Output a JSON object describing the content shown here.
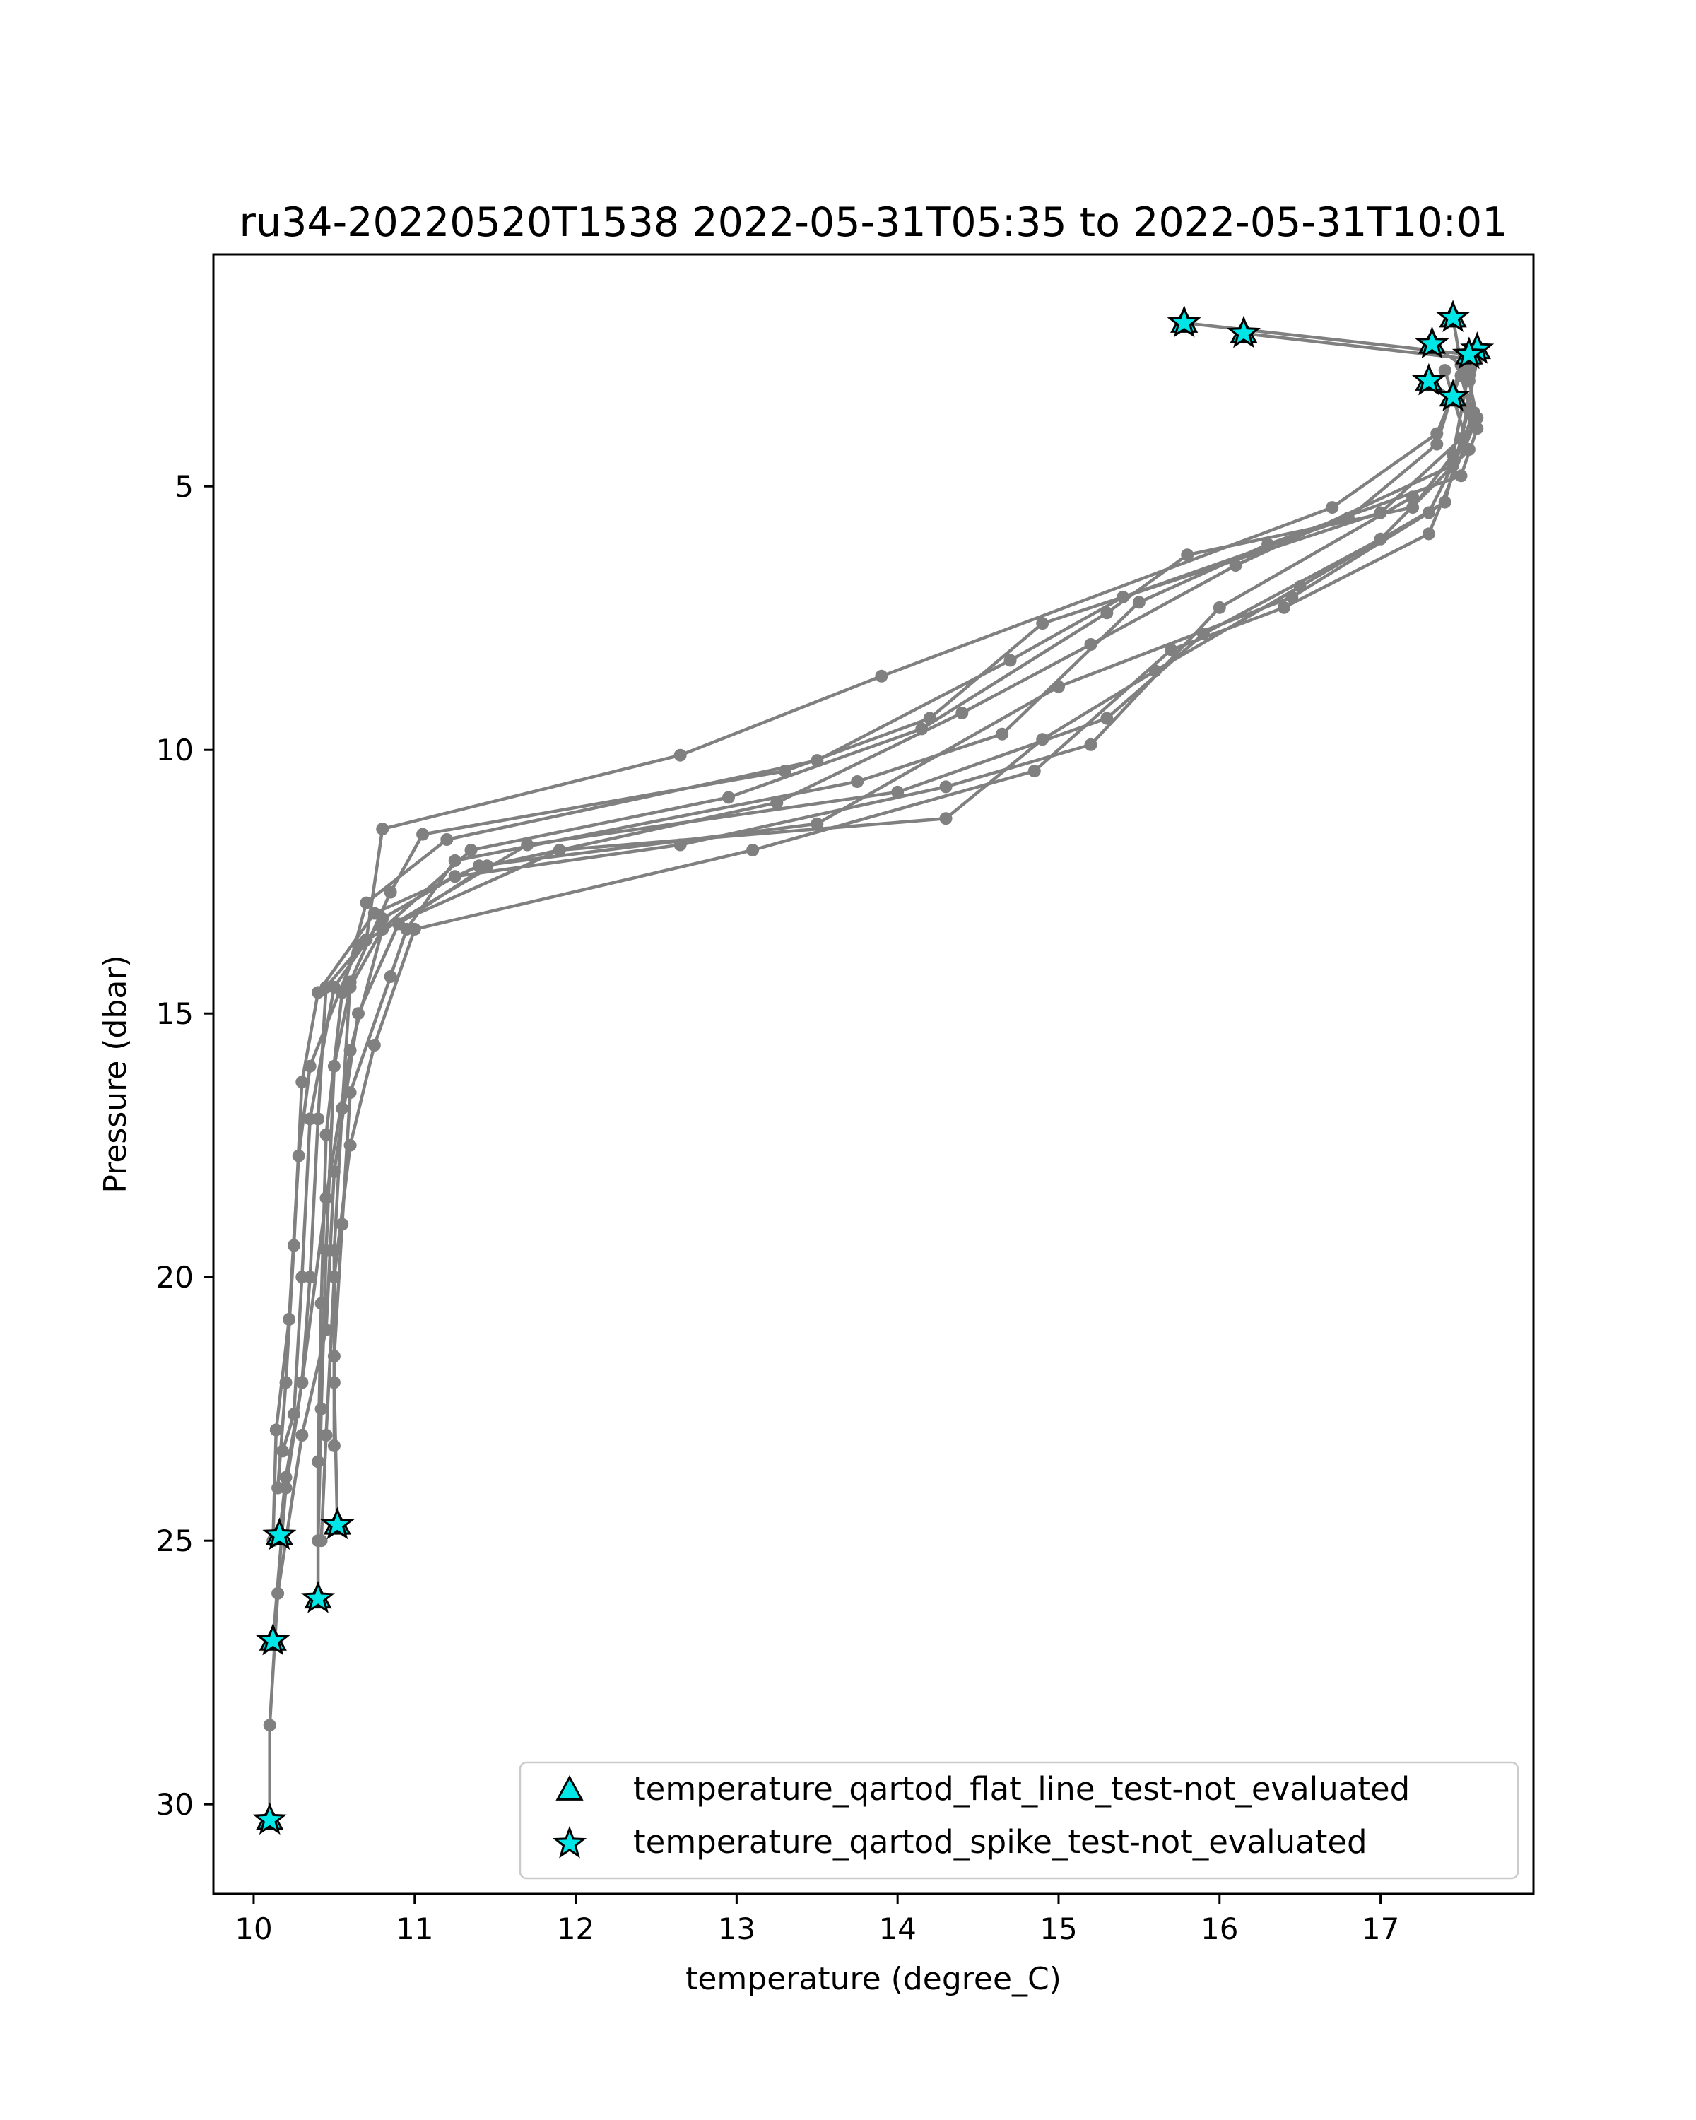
{
  "chart_data": {
    "type": "line",
    "title": "ru34-20220520T1538 2022-05-31T05:35 to 2022-05-31T10:01",
    "xlabel": "temperature (degree_C)",
    "ylabel": "Pressure (dbar)",
    "xlim": [
      9.75,
      17.95
    ],
    "ylim": [
      31.7,
      0.6
    ],
    "y_inverted": true,
    "xticks": [
      10,
      11,
      12,
      13,
      14,
      15,
      16,
      17
    ],
    "yticks": [
      5,
      10,
      15,
      20,
      25,
      30
    ],
    "grid": false,
    "legend_position": "lower-right",
    "colors": {
      "profile_line": "#808080",
      "flag_fill": "#00e5e5",
      "flag_edge": "#000000"
    },
    "legend": [
      {
        "label": "temperature_qartod_flat_line_test-not_evaluated",
        "marker": "triangle"
      },
      {
        "label": "temperature_qartod_spike_test-not_evaluated",
        "marker": "star"
      }
    ],
    "series": [
      {
        "values": [
          [
            15.78,
            1.9
          ],
          [
            17.55,
            2.5
          ],
          [
            17.35,
            4.0
          ],
          [
            16.7,
            5.4
          ],
          [
            13.9,
            8.6
          ],
          [
            12.65,
            10.1
          ],
          [
            10.8,
            11.5
          ],
          [
            10.7,
            13.6
          ],
          [
            10.45,
            14.5
          ],
          [
            10.4,
            17.0
          ],
          [
            10.35,
            20.0
          ],
          [
            10.3,
            22.0
          ],
          [
            10.2,
            23.8
          ],
          [
            10.16,
            24.9
          ]
        ]
      },
      {
        "values": [
          [
            16.15,
            2.1
          ],
          [
            17.6,
            2.6
          ],
          [
            17.5,
            4.1
          ],
          [
            17.0,
            5.5
          ],
          [
            14.9,
            7.6
          ],
          [
            14.2,
            9.4
          ],
          [
            13.3,
            10.4
          ],
          [
            11.05,
            11.6
          ],
          [
            10.85,
            12.7
          ],
          [
            10.6,
            14.4
          ],
          [
            10.55,
            16.8
          ],
          [
            10.5,
            19.5
          ],
          [
            10.5,
            22.0
          ],
          [
            10.52,
            24.7
          ]
        ]
      },
      {
        "values": [
          [
            17.45,
            1.8
          ],
          [
            17.5,
            2.7
          ],
          [
            17.35,
            4.2
          ],
          [
            16.8,
            5.6
          ],
          [
            15.4,
            7.1
          ],
          [
            14.7,
            8.3
          ],
          [
            13.5,
            10.2
          ],
          [
            11.2,
            11.7
          ],
          [
            10.7,
            12.9
          ],
          [
            10.55,
            14.6
          ],
          [
            10.45,
            17.3
          ],
          [
            10.42,
            20.5
          ],
          [
            10.4,
            23.5
          ],
          [
            10.4,
            26.1
          ]
        ]
      },
      {
        "values": [
          [
            17.32,
            2.3
          ],
          [
            17.55,
            2.8
          ],
          [
            17.45,
            4.4
          ],
          [
            17.2,
            5.4
          ],
          [
            15.8,
            6.3
          ],
          [
            15.3,
            7.4
          ],
          [
            14.15,
            9.6
          ],
          [
            12.95,
            10.9
          ],
          [
            11.35,
            11.9
          ],
          [
            10.8,
            13.4
          ],
          [
            10.6,
            15.7
          ],
          [
            10.45,
            18.5
          ],
          [
            10.3,
            22.0
          ],
          [
            10.2,
            24.0
          ],
          [
            10.12,
            26.9
          ]
        ]
      },
      {
        "values": [
          [
            17.3,
            3.0
          ],
          [
            17.58,
            3.6
          ],
          [
            17.45,
            4.6
          ],
          [
            16.1,
            6.5
          ],
          [
            15.2,
            8.0
          ],
          [
            14.4,
            9.3
          ],
          [
            13.25,
            11.0
          ],
          [
            11.45,
            12.2
          ],
          [
            10.9,
            13.3
          ],
          [
            10.65,
            15.0
          ],
          [
            10.5,
            18.0
          ],
          [
            10.45,
            21.0
          ],
          [
            10.3,
            23.0
          ],
          [
            10.15,
            26.0
          ],
          [
            10.1,
            28.5
          ],
          [
            10.1,
            30.3
          ]
        ]
      },
      {
        "values": [
          [
            17.45,
            3.3
          ],
          [
            17.6,
            3.9
          ],
          [
            17.5,
            4.8
          ],
          [
            16.3,
            6.1
          ],
          [
            15.5,
            7.2
          ],
          [
            14.65,
            9.7
          ],
          [
            13.75,
            10.6
          ],
          [
            11.25,
            12.1
          ],
          [
            10.95,
            13.4
          ],
          [
            10.85,
            14.3
          ],
          [
            10.6,
            16.5
          ],
          [
            10.55,
            19.0
          ],
          [
            10.5,
            21.5
          ],
          [
            10.5,
            23.2
          ]
        ]
      },
      {
        "values": [
          [
            17.6,
            2.4
          ],
          [
            17.55,
            3.5
          ],
          [
            17.4,
            5.3
          ],
          [
            16.5,
            6.9
          ],
          [
            15.6,
            8.5
          ],
          [
            14.9,
            9.8
          ],
          [
            14.3,
            11.3
          ],
          [
            11.9,
            11.9
          ],
          [
            10.8,
            13.4
          ],
          [
            10.6,
            14.5
          ],
          [
            10.5,
            16.0
          ],
          [
            10.45,
            19.5
          ],
          [
            10.42,
            22.5
          ],
          [
            10.4,
            25.0
          ]
        ]
      },
      {
        "values": [
          [
            17.55,
            3.0
          ],
          [
            17.6,
            3.7
          ],
          [
            17.3,
            5.9
          ],
          [
            16.4,
            7.3
          ],
          [
            15.7,
            8.1
          ],
          [
            14.85,
            10.4
          ],
          [
            13.1,
            11.9
          ],
          [
            11.0,
            13.4
          ],
          [
            10.75,
            15.6
          ],
          [
            10.6,
            17.5
          ],
          [
            10.5,
            20.0
          ],
          [
            10.45,
            23.0
          ],
          [
            10.42,
            25.0
          ]
        ]
      },
      {
        "values": [
          [
            17.5,
            2.9
          ],
          [
            17.58,
            3.8
          ],
          [
            17.3,
            5.5
          ],
          [
            16.45,
            7.1
          ],
          [
            15.0,
            8.8
          ],
          [
            13.5,
            11.4
          ],
          [
            11.4,
            12.2
          ],
          [
            10.75,
            13.1
          ],
          [
            10.4,
            14.6
          ],
          [
            10.3,
            16.3
          ],
          [
            10.25,
            19.4
          ],
          [
            10.2,
            22.0
          ],
          [
            10.15,
            24.0
          ]
        ]
      },
      {
        "values": [
          [
            17.4,
            2.8
          ],
          [
            17.55,
            4.3
          ],
          [
            17.0,
            6.0
          ],
          [
            15.9,
            7.8
          ],
          [
            15.3,
            9.4
          ],
          [
            14.0,
            10.8
          ],
          [
            11.7,
            11.8
          ],
          [
            10.65,
            13.7
          ],
          [
            10.35,
            16.0
          ],
          [
            10.28,
            17.7
          ],
          [
            10.22,
            20.8
          ],
          [
            10.14,
            22.9
          ],
          [
            10.12,
            25.0
          ]
        ]
      },
      {
        "values": [
          [
            17.2,
            5.2
          ],
          [
            16.0,
            7.3
          ],
          [
            15.2,
            9.9
          ],
          [
            14.3,
            10.7
          ],
          [
            12.65,
            11.8
          ],
          [
            11.25,
            12.4
          ],
          [
            10.8,
            13.2
          ],
          [
            10.5,
            14.5
          ],
          [
            10.35,
            17.0
          ],
          [
            10.3,
            20.0
          ],
          [
            10.25,
            22.6
          ],
          [
            10.18,
            23.3
          ]
        ]
      }
    ],
    "flagged_points": [
      {
        "marker": "triangle",
        "values": [
          [
            15.78,
            1.9
          ],
          [
            16.15,
            2.1
          ],
          [
            17.45,
            1.8
          ],
          [
            17.32,
            2.3
          ],
          [
            17.6,
            2.4
          ],
          [
            17.55,
            2.5
          ],
          [
            17.3,
            3.0
          ],
          [
            17.45,
            3.3
          ],
          [
            10.16,
            24.9
          ],
          [
            10.52,
            24.7
          ],
          [
            10.4,
            26.1
          ],
          [
            10.12,
            26.9
          ],
          [
            10.1,
            30.3
          ]
        ]
      },
      {
        "marker": "star",
        "values": [
          [
            15.78,
            1.9
          ],
          [
            16.15,
            2.1
          ],
          [
            17.45,
            1.8
          ],
          [
            17.32,
            2.3
          ],
          [
            17.6,
            2.4
          ],
          [
            17.55,
            2.5
          ],
          [
            17.3,
            3.0
          ],
          [
            17.45,
            3.3
          ],
          [
            10.16,
            24.9
          ],
          [
            10.52,
            24.7
          ],
          [
            10.4,
            26.1
          ],
          [
            10.12,
            26.9
          ],
          [
            10.1,
            30.3
          ]
        ]
      }
    ]
  }
}
